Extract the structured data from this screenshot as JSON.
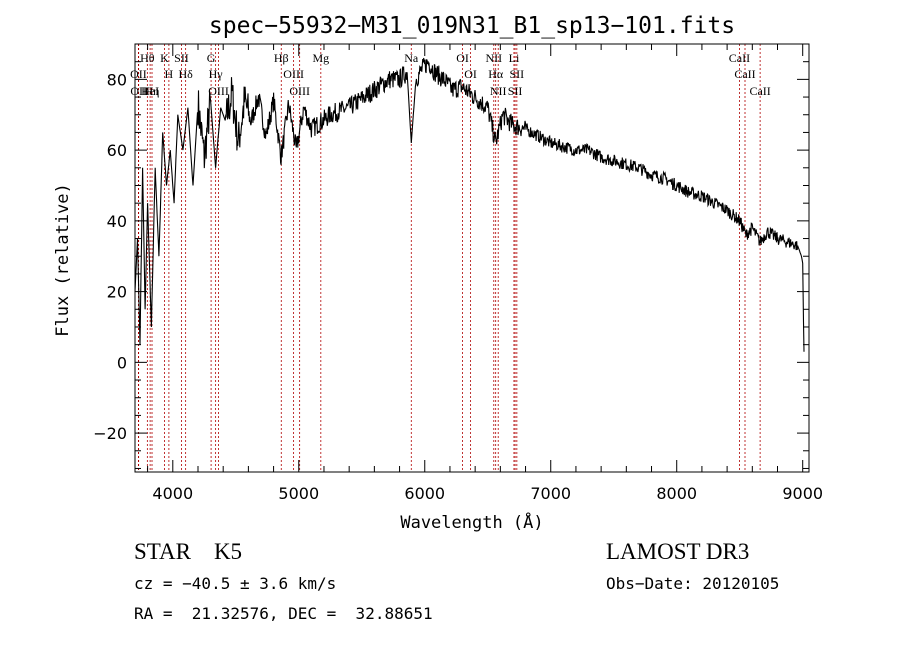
{
  "colors": {
    "spectrum": "#000000",
    "line_marker": "#b00000",
    "axes": "#000000",
    "background": "#ffffff"
  },
  "chart_data": {
    "type": "line",
    "title": "spec−55932−M31_019N31_B1_sp13−101.fits",
    "xlabel": "Wavelength (Å)",
    "ylabel": "Flux (relative)",
    "xlim": [
      3700,
      9050
    ],
    "ylim": [
      -31,
      90
    ],
    "x_ticks": [
      4000,
      5000,
      6000,
      7000,
      8000,
      9000
    ],
    "x_tick_labels": [
      "4000",
      "5000",
      "6000",
      "7000",
      "8000",
      "9000"
    ],
    "y_ticks": [
      -20,
      0,
      20,
      40,
      60,
      80
    ],
    "y_tick_labels": [
      "−20",
      "0",
      "20",
      "40",
      "60",
      "80"
    ],
    "grid": false,
    "series": [
      {
        "name": "flux",
        "x": [
          3700,
          3720,
          3740,
          3760,
          3780,
          3800,
          3830,
          3860,
          3890,
          3920,
          3950,
          3980,
          4010,
          4040,
          4080,
          4120,
          4160,
          4200,
          4250,
          4300,
          4340,
          4380,
          4420,
          4470,
          4520,
          4570,
          4620,
          4680,
          4740,
          4800,
          4860,
          4920,
          4980,
          5040,
          5100,
          5180,
          5250,
          5320,
          5400,
          5480,
          5560,
          5640,
          5720,
          5800,
          5860,
          5893,
          5930,
          5980,
          6030,
          6080,
          6150,
          6220,
          6290,
          6360,
          6430,
          6500,
          6563,
          6620,
          6700,
          6800,
          6900,
          7000,
          7100,
          7200,
          7300,
          7400,
          7500,
          7600,
          7700,
          7800,
          7900,
          8000,
          8100,
          8200,
          8300,
          8400,
          8500,
          8550,
          8600,
          8662,
          8720,
          8800,
          8880,
          8960,
          8990,
          9000,
          9010
        ],
        "y": [
          20,
          35,
          5,
          55,
          15,
          45,
          10,
          55,
          30,
          65,
          50,
          60,
          45,
          70,
          60,
          72,
          50,
          73,
          58,
          74,
          55,
          72,
          68,
          76,
          62,
          74,
          68,
          75,
          64,
          74,
          58,
          73,
          60,
          72,
          66,
          68,
          70,
          71,
          72,
          74,
          76,
          78,
          80,
          80,
          82,
          62,
          80,
          83,
          85,
          82,
          80,
          77,
          78,
          76,
          74,
          72,
          62,
          70,
          67,
          66,
          64,
          62,
          61,
          60,
          60,
          58,
          57,
          56,
          55,
          53,
          52,
          50,
          48,
          47,
          45,
          43,
          40,
          36,
          38,
          34,
          37,
          35,
          34,
          33,
          30,
          28,
          3
        ]
      }
    ],
    "line_markers": [
      {
        "label": "Hθ",
        "x": 3798
      },
      {
        "label": "OII",
        "x": 3727
      },
      {
        "label": "OII",
        "x": 3729
      },
      {
        "label": "HeI",
        "x": 3820
      },
      {
        "label": "Hη",
        "x": 3835
      },
      {
        "label": "K",
        "x": 3934
      },
      {
        "label": "H",
        "x": 3969
      },
      {
        "label": "SII",
        "x": 4069
      },
      {
        "label": "Hδ",
        "x": 4102
      },
      {
        "label": "G",
        "x": 4304
      },
      {
        "label": "Hγ",
        "x": 4340
      },
      {
        "label": "OIII",
        "x": 4363
      },
      {
        "label": "Hβ",
        "x": 4861
      },
      {
        "label": "OIII",
        "x": 4959
      },
      {
        "label": "OIII",
        "x": 5007
      },
      {
        "label": "Mg",
        "x": 5175
      },
      {
        "label": "Na",
        "x": 5893
      },
      {
        "label": "OI",
        "x": 6300
      },
      {
        "label": "OI",
        "x": 6364
      },
      {
        "label": "NII",
        "x": 6548
      },
      {
        "label": "Hα",
        "x": 6563
      },
      {
        "label": "NII",
        "x": 6583
      },
      {
        "label": "Li",
        "x": 6708
      },
      {
        "label": "SII",
        "x": 6717
      },
      {
        "label": "SII",
        "x": 6731
      },
      {
        "label": "CaII",
        "x": 8498
      },
      {
        "label": "CaII",
        "x": 8542
      },
      {
        "label": "CaII",
        "x": 8662
      }
    ]
  },
  "footer": {
    "classification": "STAR    K5",
    "survey": "LAMOST DR3",
    "redshift": "cz = −40.5 ± 3.6 km/s",
    "obs_date": "Obs−Date: 20120105",
    "coordinates": "RA =  21.32576, DEC =  32.88651"
  }
}
